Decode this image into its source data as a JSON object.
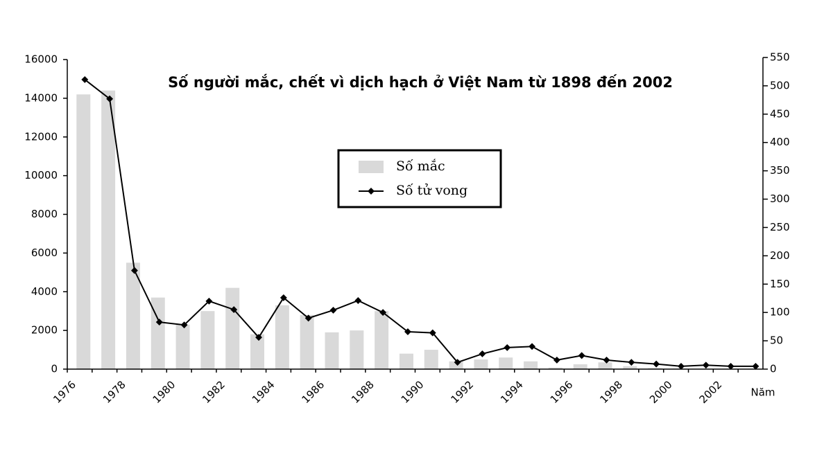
{
  "chart_data": {
    "type": "bar_line",
    "title": "Số người mắc, chết vì dịch hạch ở Việt Nam từ 1898 đến 2002",
    "x_label": "Năm",
    "categories": [
      "1976",
      null,
      "1978",
      null,
      "1980",
      null,
      "1982",
      null,
      "1984",
      null,
      "1986",
      null,
      "1988",
      null,
      "1990",
      null,
      "1992",
      null,
      "1994",
      null,
      "1996",
      null,
      "1998",
      null,
      "2000",
      null,
      "2002",
      null
    ],
    "series": [
      {
        "name": "Số mắc",
        "type": "bar",
        "color": "#d9d9d9",
        "values": [
          14200,
          14400,
          5500,
          3700,
          2300,
          3000,
          4200,
          1800,
          3300,
          2800,
          1900,
          2000,
          3000,
          800,
          1000,
          400,
          500,
          600,
          400,
          80,
          250,
          350,
          150,
          50,
          30,
          20,
          20,
          20
        ]
      },
      {
        "name": "Số tử vong",
        "type": "line",
        "axis": "y2",
        "color": "#000000",
        "values": [
          511,
          477,
          174,
          83,
          78,
          120,
          105,
          56,
          126,
          90,
          104,
          121,
          100,
          66,
          64,
          12,
          27,
          38,
          40,
          16,
          24,
          16,
          12,
          9,
          5,
          7,
          5,
          5
        ]
      }
    ],
    "ylim": [
      0,
      16000
    ],
    "yticks": [
      0,
      2000,
      4000,
      6000,
      8000,
      10000,
      12000,
      14000,
      16000
    ],
    "y2lim": [
      0,
      550
    ],
    "y2ticks": [
      0,
      50,
      100,
      150,
      200,
      250,
      300,
      350,
      400,
      450,
      500,
      550
    ]
  }
}
